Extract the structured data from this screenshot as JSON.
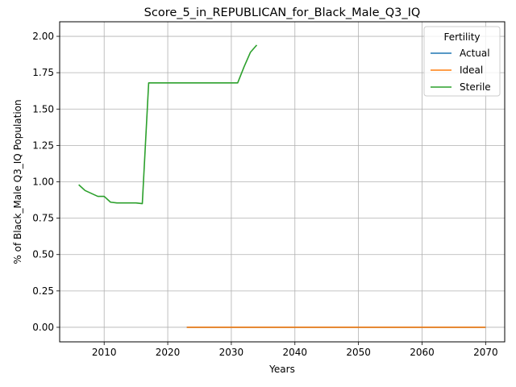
{
  "chart_data": {
    "type": "line",
    "title": "Score_5_in_REPUBLICAN_for_Black_Male_Q3_IQ",
    "xlabel": "Years",
    "ylabel": "% of Black_Male Q3_IQ Population",
    "xlim": [
      2003,
      2073
    ],
    "ylim": [
      -0.1,
      2.1
    ],
    "x_ticks": [
      2010,
      2020,
      2030,
      2040,
      2050,
      2060,
      2070
    ],
    "y_ticks": [
      0.0,
      0.25,
      0.5,
      0.75,
      1.0,
      1.25,
      1.5,
      1.75,
      2.0
    ],
    "x_tick_labels": [
      "2010",
      "2020",
      "2030",
      "2040",
      "2050",
      "2060",
      "2070"
    ],
    "y_tick_labels": [
      "0.00",
      "0.25",
      "0.50",
      "0.75",
      "1.00",
      "1.25",
      "1.50",
      "1.75",
      "2.00"
    ],
    "grid": true,
    "legend": {
      "title": "Fertility",
      "placement": "top-right"
    },
    "series": [
      {
        "name": "Actual",
        "color": "#1f77b4",
        "x": [
          2023,
          2070
        ],
        "y": [
          0.0,
          0.0
        ]
      },
      {
        "name": "Ideal",
        "color": "#ff7f0e",
        "x": [
          2023,
          2030,
          2040,
          2050,
          2060,
          2070
        ],
        "y": [
          0.0,
          0.0,
          0.0,
          0.0,
          0.0,
          0.0
        ]
      },
      {
        "name": "Sterile",
        "color": "#2ca02c",
        "x": [
          2006,
          2007,
          2008,
          2009,
          2010,
          2011,
          2012,
          2013,
          2014,
          2015,
          2016,
          2017,
          2018,
          2019,
          2020,
          2021,
          2022,
          2023,
          2024,
          2025,
          2026,
          2027,
          2028,
          2029,
          2030,
          2031,
          2032,
          2033,
          2034
        ],
        "y": [
          0.98,
          0.94,
          0.92,
          0.9,
          0.9,
          0.86,
          0.855,
          0.855,
          0.855,
          0.855,
          0.85,
          1.68,
          1.68,
          1.68,
          1.68,
          1.68,
          1.68,
          1.68,
          1.68,
          1.68,
          1.68,
          1.68,
          1.68,
          1.68,
          1.68,
          1.68,
          1.79,
          1.89,
          1.94
        ]
      }
    ]
  }
}
